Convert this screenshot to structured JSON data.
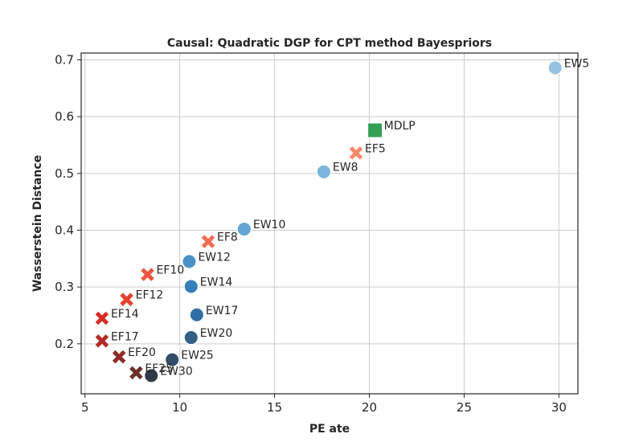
{
  "chart_data": {
    "type": "scatter",
    "title": "Causal: Quadratic DGP for CPT method Bayespriors",
    "xlabel": "PE ate",
    "ylabel": "Wasserstein Distance",
    "xlim": [
      4.8,
      31.0
    ],
    "ylim": [
      0.112,
      0.712
    ],
    "xticks": [
      5,
      10,
      15,
      20,
      25,
      30
    ],
    "yticks": [
      0.2,
      0.3,
      0.4,
      0.5,
      0.6,
      0.7
    ],
    "grid": true,
    "legend": "none",
    "points": [
      {
        "label": "EW5",
        "x": 29.8,
        "y": 0.686,
        "marker": "circle",
        "color": "#93c3df"
      },
      {
        "label": "MDLP",
        "x": 20.3,
        "y": 0.576,
        "marker": "square",
        "color": "#33a054"
      },
      {
        "label": "EF5",
        "x": 19.3,
        "y": 0.536,
        "marker": "x",
        "color": "#f5896b"
      },
      {
        "label": "EW8",
        "x": 17.6,
        "y": 0.503,
        "marker": "circle",
        "color": "#7ab5db"
      },
      {
        "label": "EW10",
        "x": 13.4,
        "y": 0.402,
        "marker": "circle",
        "color": "#62a4d3"
      },
      {
        "label": "EF8",
        "x": 11.5,
        "y": 0.38,
        "marker": "x",
        "color": "#f26e54"
      },
      {
        "label": "EW12",
        "x": 10.5,
        "y": 0.345,
        "marker": "circle",
        "color": "#4a92c6"
      },
      {
        "label": "EF10",
        "x": 8.3,
        "y": 0.322,
        "marker": "x",
        "color": "#ec553f"
      },
      {
        "label": "EW14",
        "x": 10.6,
        "y": 0.301,
        "marker": "circle",
        "color": "#3580bb"
      },
      {
        "label": "EF12",
        "x": 7.2,
        "y": 0.278,
        "marker": "x",
        "color": "#e2402e"
      },
      {
        "label": "EW17",
        "x": 10.9,
        "y": 0.251,
        "marker": "circle",
        "color": "#2f6ea3"
      },
      {
        "label": "EF14",
        "x": 5.9,
        "y": 0.245,
        "marker": "x",
        "color": "#d52f24"
      },
      {
        "label": "EW20",
        "x": 10.6,
        "y": 0.211,
        "marker": "circle",
        "color": "#315f86"
      },
      {
        "label": "EF17",
        "x": 5.9,
        "y": 0.205,
        "marker": "x",
        "color": "#b22b26"
      },
      {
        "label": "EF20",
        "x": 6.8,
        "y": 0.177,
        "marker": "x",
        "color": "#8e2b27"
      },
      {
        "label": "EW25",
        "x": 9.6,
        "y": 0.172,
        "marker": "circle",
        "color": "#334d66"
      },
      {
        "label": "EF25",
        "x": 7.7,
        "y": 0.149,
        "marker": "x",
        "color": "#6b302d"
      },
      {
        "label": "EW30",
        "x": 8.5,
        "y": 0.144,
        "marker": "circle",
        "color": "#2e3a48"
      }
    ]
  }
}
